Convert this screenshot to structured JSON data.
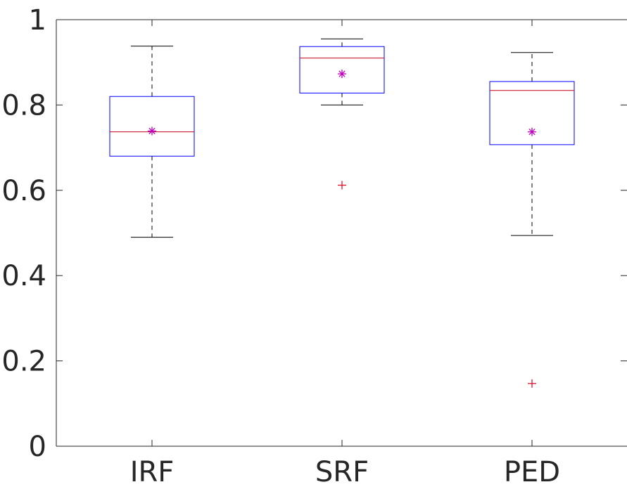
{
  "chart_data": {
    "type": "box",
    "title": "",
    "xlabel": "",
    "ylabel": "",
    "categories": [
      "IRF",
      "SRF",
      "PED"
    ],
    "ylim": [
      0,
      1
    ],
    "yticks": [
      "0",
      "0.2",
      "0.4",
      "0.6",
      "0.8",
      "1"
    ],
    "boxes": [
      {
        "label": "IRF",
        "whisker_low": 0.49,
        "q1": 0.68,
        "median": 0.737,
        "q3": 0.82,
        "whisker_high": 0.938,
        "mean": 0.739,
        "outliers": []
      },
      {
        "label": "SRF",
        "whisker_low": 0.8,
        "q1": 0.828,
        "median": 0.91,
        "q3": 0.937,
        "whisker_high": 0.955,
        "mean": 0.873,
        "outliers": [
          0.612
        ]
      },
      {
        "label": "PED",
        "whisker_low": 0.494,
        "q1": 0.707,
        "median": 0.834,
        "q3": 0.855,
        "whisker_high": 0.923,
        "mean": 0.737,
        "outliers": [
          0.147
        ]
      }
    ],
    "colors": {
      "box": "#0000ff",
      "median": "#c0001a",
      "whisker": "#000000",
      "mean": "#c000c0",
      "outlier": "#e0001a",
      "axis": "#262626"
    },
    "grid": false,
    "legend": "none"
  }
}
